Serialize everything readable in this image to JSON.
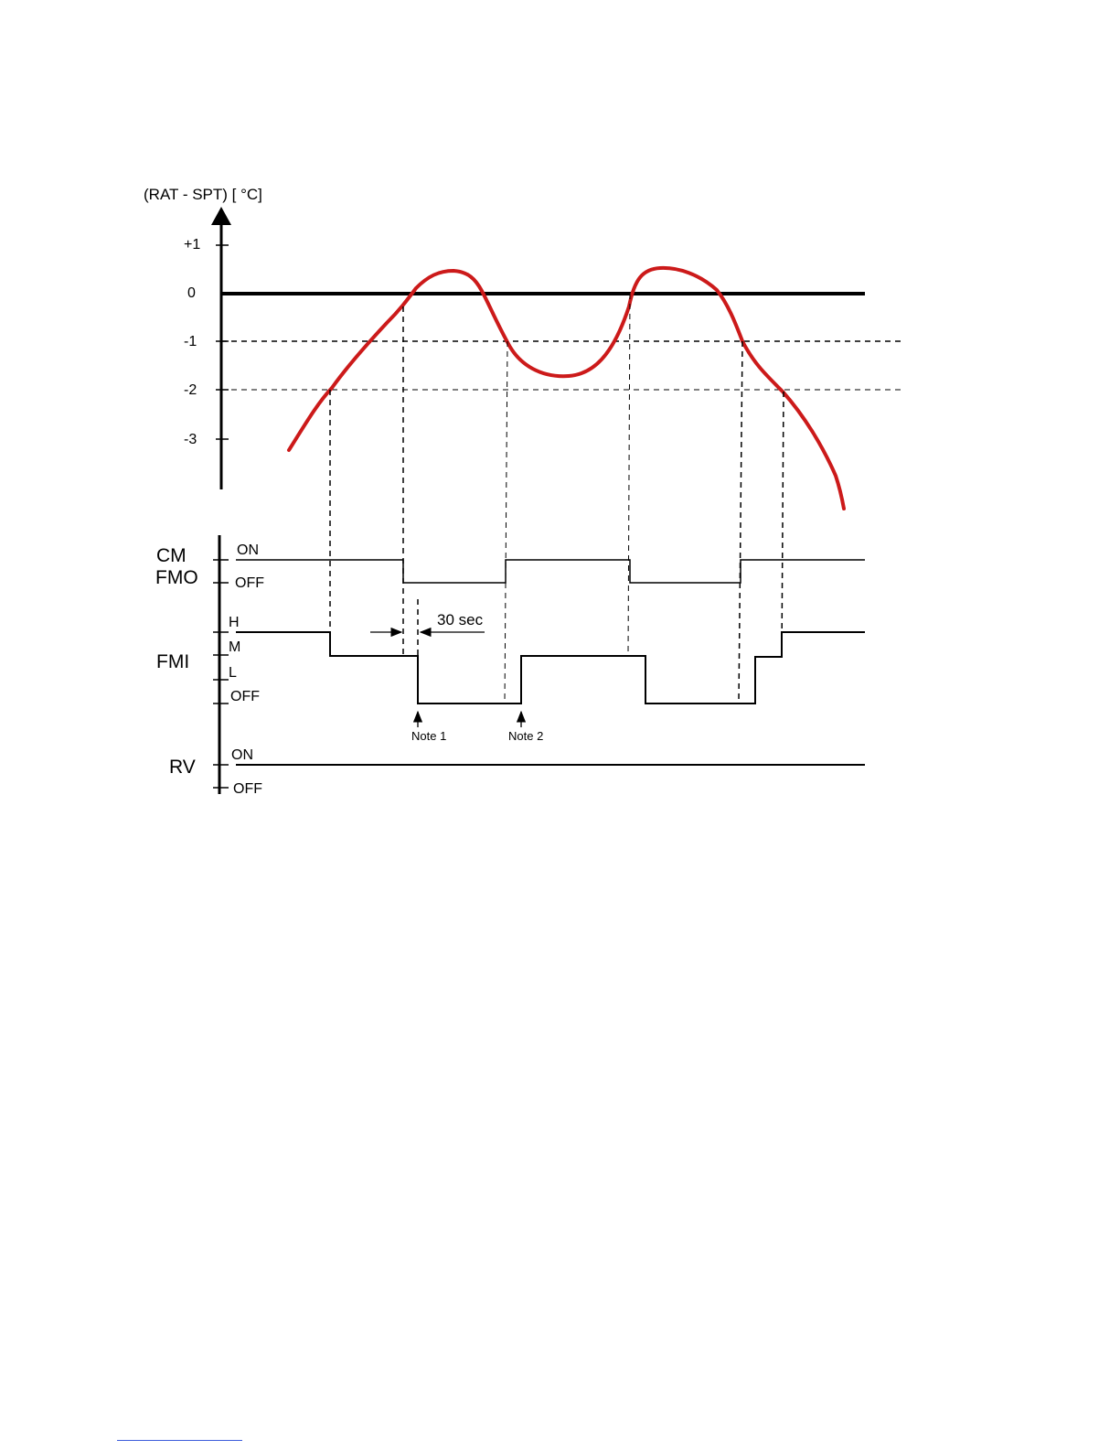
{
  "y_axis": {
    "title": "(RAT - SPT) [ °C]",
    "ticks": [
      "+1",
      "0",
      "-1",
      "-2",
      "-3"
    ]
  },
  "signals": {
    "cm_label": "CM",
    "fmo_label": "FMO",
    "cm_fmo_states": [
      "ON",
      "OFF"
    ],
    "fmi_label": "FMI",
    "fmi_states": [
      "H",
      "M",
      "L",
      "OFF"
    ],
    "rv_label": "RV",
    "rv_states": [
      "ON",
      "OFF"
    ]
  },
  "annotations": {
    "delay": "30 sec",
    "note1": "Note 1",
    "note2": "Note 2"
  },
  "colors": {
    "curve": "#cc1a1a",
    "lines": "#000000",
    "footer_rule": "#3b5bdb"
  }
}
